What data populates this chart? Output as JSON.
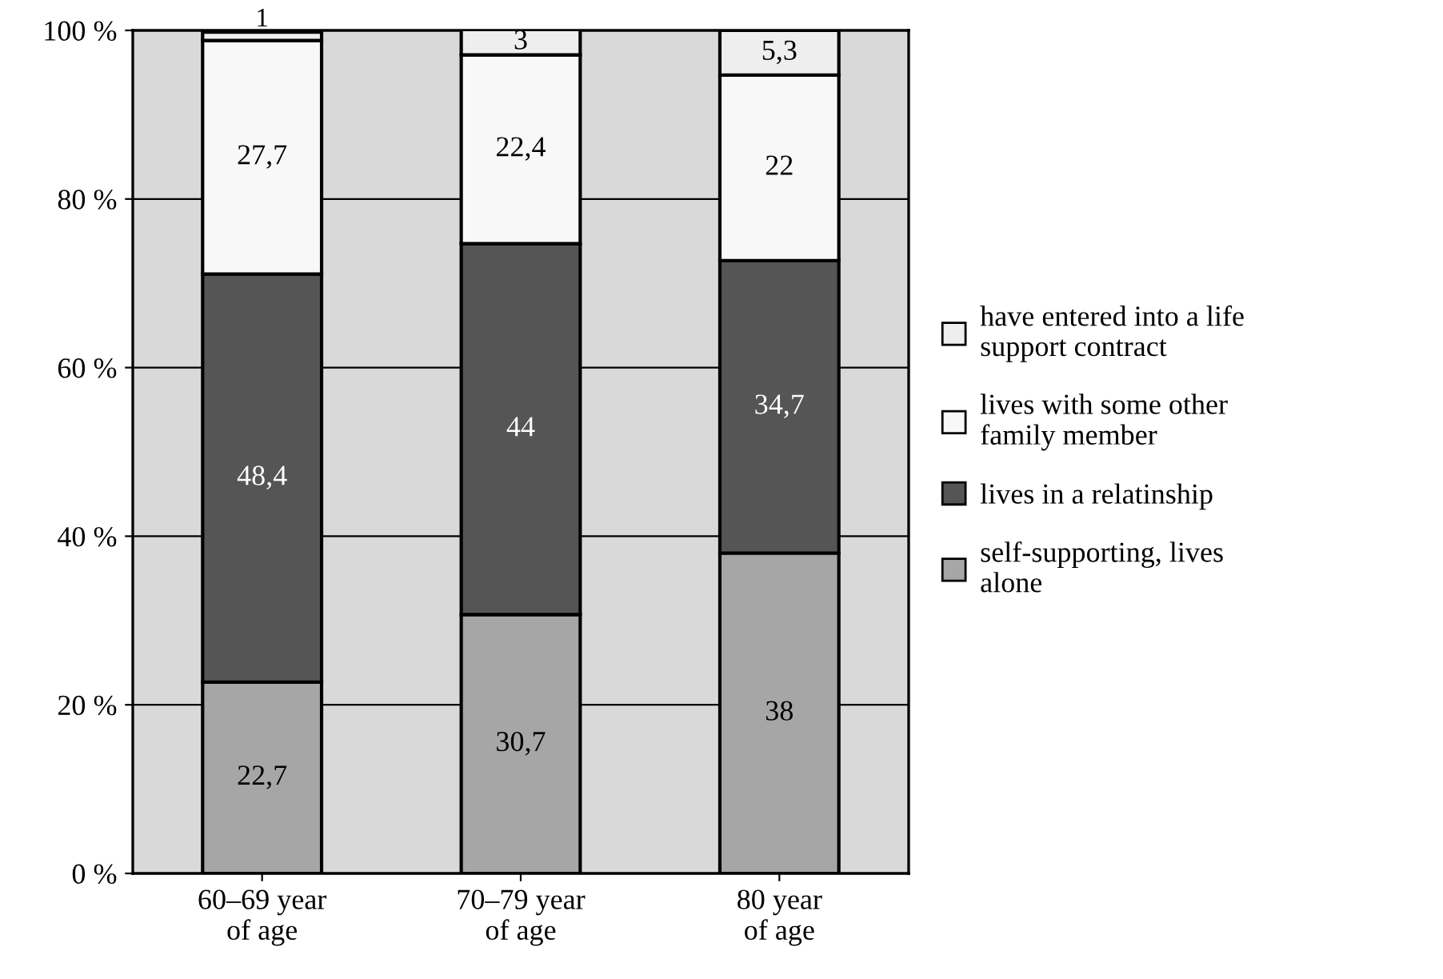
{
  "chart_data": {
    "type": "bar",
    "stacked": true,
    "categories": [
      "60–69 year\nof age",
      "70–79 year\nof age",
      "80 year\nof age"
    ],
    "series": [
      {
        "name": "self-supporting, lives\nalone",
        "color": "#a6a6a6",
        "values": [
          22.7,
          30.7,
          38
        ],
        "value_labels": [
          "22,7",
          "30,7",
          "38"
        ]
      },
      {
        "name": "lives in a relatinship",
        "color": "#555555",
        "values": [
          48.4,
          44,
          34.7
        ],
        "value_labels": [
          "48,4",
          "44",
          "34,7"
        ]
      },
      {
        "name": "lives with some other\nfamily member",
        "color": "#f8f8f8",
        "values": [
          27.7,
          22.4,
          22
        ],
        "value_labels": [
          "27,7",
          "22,4",
          "22"
        ]
      },
      {
        "name": "have entered into a life\nsupport contract",
        "color": "#eeeeee",
        "values": [
          1,
          3,
          5.3
        ],
        "value_labels": [
          "1",
          "3",
          "5,3"
        ]
      }
    ],
    "ylim": [
      0,
      100
    ],
    "yticks": [
      {
        "value": 0,
        "label": "0 %"
      },
      {
        "value": 20,
        "label": "20 %"
      },
      {
        "value": 40,
        "label": "40 %"
      },
      {
        "value": 60,
        "label": "60 %"
      },
      {
        "value": 80,
        "label": "80 %"
      },
      {
        "value": 100,
        "label": "100 %"
      }
    ],
    "grid": "y",
    "legend": "right"
  }
}
